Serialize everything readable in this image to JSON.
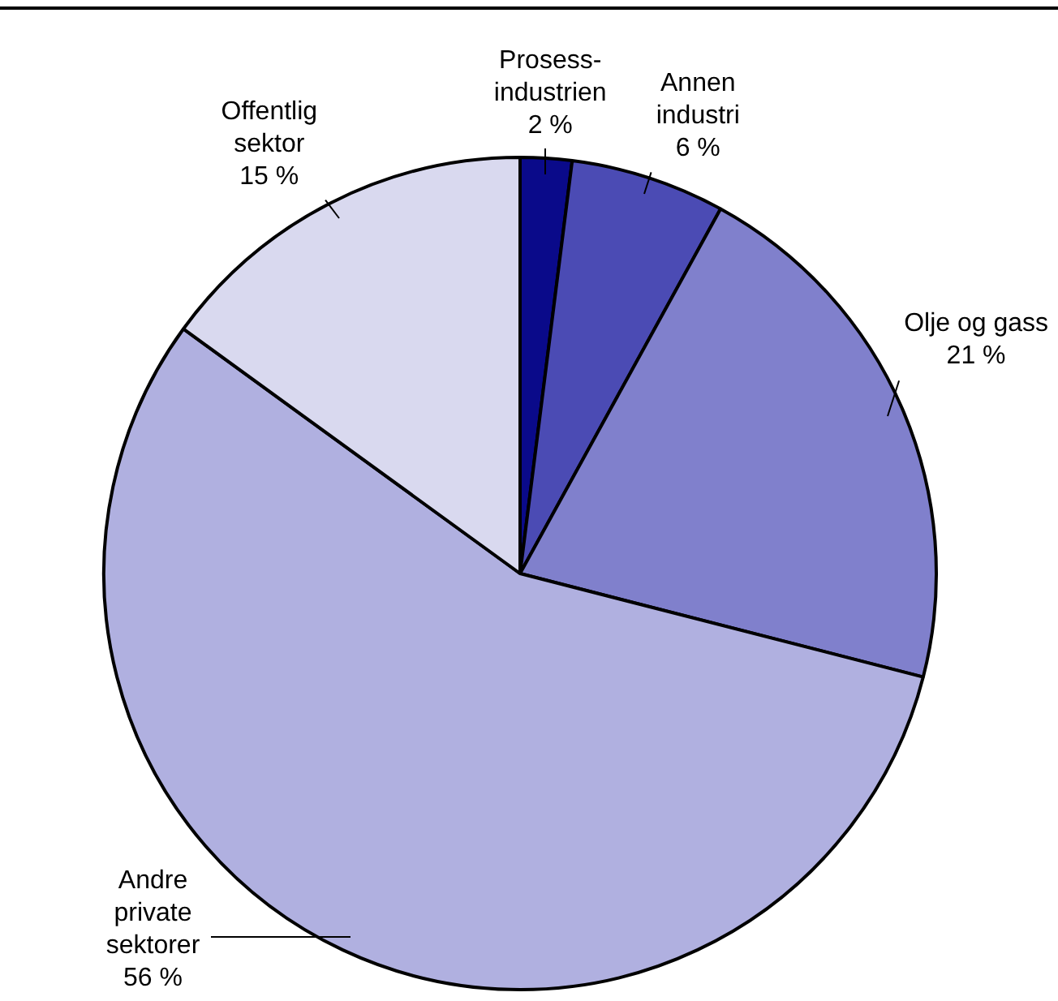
{
  "chart_data": {
    "type": "pie",
    "categories": [
      "Prosess-industrien",
      "Annen industri",
      "Olje og gass",
      "Andre private sektorer",
      "Offentlig sektor"
    ],
    "values": [
      2,
      6,
      21,
      56,
      15
    ],
    "value_labels": [
      "2 %",
      "6 %",
      "21 %",
      "56 %",
      "15 %"
    ],
    "colors": [
      "#0a0a8a",
      "#4b4bb4",
      "#8080cc",
      "#b0b0e0",
      "#d9d9ef"
    ],
    "legend": false
  }
}
